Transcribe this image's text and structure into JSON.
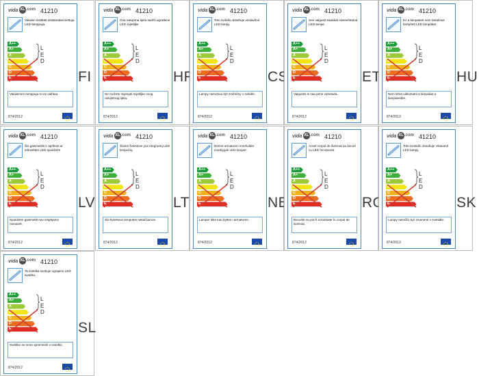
{
  "brand": {
    "prefix": "vida",
    "mark": "XL",
    "suffix": ".com"
  },
  "model_number": "41210",
  "regulation": "874/2012",
  "classes": [
    "A++",
    "A+",
    "A",
    "B",
    "C",
    "D",
    "E"
  ],
  "class_colors": [
    "#1c9b3b",
    "#3fae3a",
    "#9cc93b",
    "#f2e415",
    "#f4b21a",
    "#ec6d1f",
    "#e12a22"
  ],
  "led_letters": [
    "L",
    "E",
    "D"
  ],
  "cross_color": "#d23a30",
  "labels": [
    {
      "lang": "FI",
      "description": "Valaisin sisältää sisäänrakennettuja LED-lamppuja.",
      "note": "Valaisimen lamppuja ei voi vaihtaa."
    },
    {
      "lang": "HR",
      "description": "Ova rasvjetna tijela sadrži ugrađene LED svjetiljke",
      "note": "Ne možete mijenjati svjetiljke ovog rasvjetnog tijela."
    },
    {
      "lang": "CS",
      "description": "Toto svítidlo obsahuje vestavěné LED lampy.",
      "note": "Lampy nemohou být změněny v svítidle."
    },
    {
      "lang": "ET",
      "description": "See valgusti sisaldab sisseehitatud LED-lampe",
      "note": "Valgustis ei saa pirne vahetada."
    },
    {
      "lang": "HU",
      "description": "Ez a lámpatest nem tartalmaz beépített LED lámpákat.",
      "note": "Nem lehet változtatni a lámpákat a lámpatestbe."
    },
    {
      "lang": "LV",
      "description": "Šis gaismeklis ir aprīkots ar iebūvētām LED spuldzēm",
      "note": "Spuldzēm gaismeklī nav iespējams nomainīt."
    },
    {
      "lang": "LT",
      "description": "Šiame šviestuve yra integruotų LED lempučių.",
      "note": "Šio šviestuvo lemputės nekeičiamos."
    },
    {
      "lang": "NB",
      "description": "Denne armaturen inneholder innebygde LED-lamper.",
      "note": "Lamper ikke kan byttes i armaturen."
    },
    {
      "lang": "RO",
      "description": "Acest corpul de iluminat au becuri cu LED încorporat.",
      "note": "Becurile nu pot fi schimbate în corpul de iluminat."
    },
    {
      "lang": "SK",
      "description": "Toto svietidlo obsahuje vstavané LED lampy.",
      "note": "Lampy nemôžu byť zmenené v svietidle."
    },
    {
      "lang": "SL",
      "description": "Ta svetilka svebuje vgrajeno LED svetilko.",
      "note": "Svetilke se more spremeniti v svetilko."
    }
  ]
}
